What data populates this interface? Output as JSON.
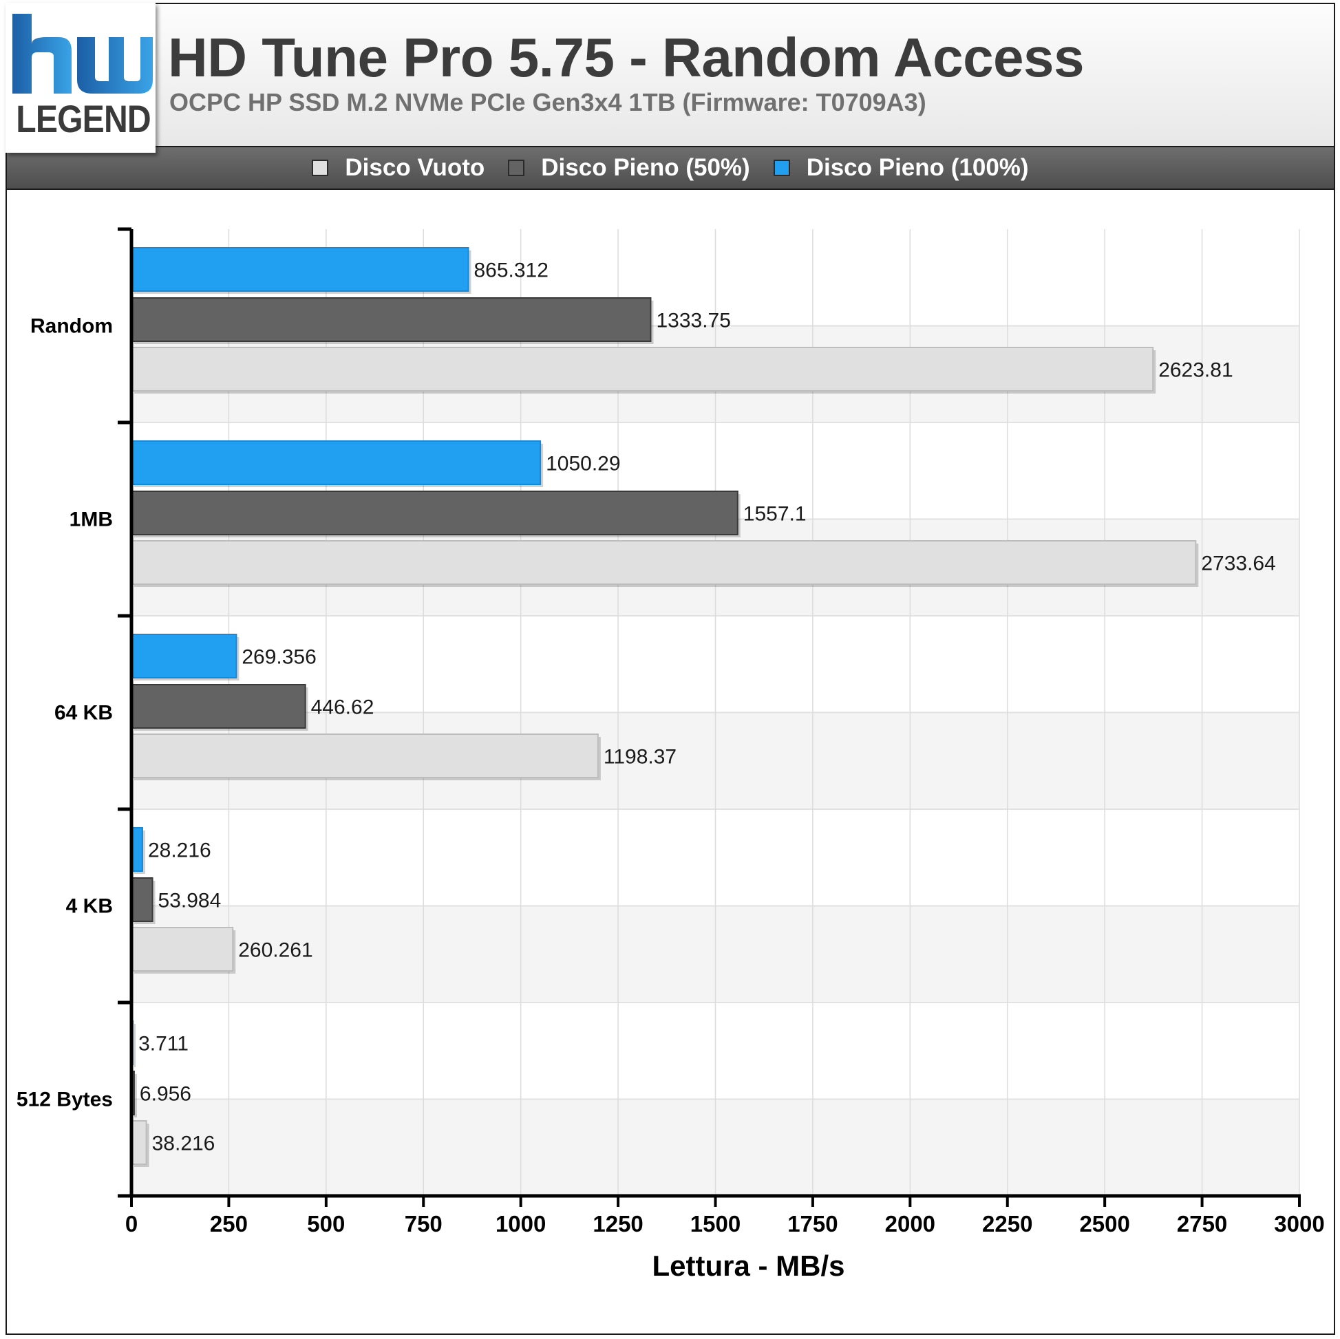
{
  "header": {
    "title": "HD Tune Pro 5.75 - Random Access",
    "subtitle": "OCPC HP SSD M.2 NVMe PCIe Gen3x4 1TB (Firmware: T0709A3)"
  },
  "logo": {
    "text": "LEGEND",
    "icon": "hwlegend-logo"
  },
  "chart_data": {
    "type": "bar",
    "orientation": "horizontal",
    "categories": [
      "Random",
      "1MB",
      "64 KB",
      "4 KB",
      "512 Bytes"
    ],
    "series": [
      {
        "name": "Disco Vuoto",
        "color": "#e0e0e0",
        "values": [
          2623.81,
          2733.64,
          1198.37,
          260.261,
          38.216
        ]
      },
      {
        "name": "Disco Pieno (50%)",
        "color": "#636363",
        "values": [
          1333.75,
          1557.1,
          446.62,
          53.984,
          6.956
        ]
      },
      {
        "name": "Disco Pieno (100%)",
        "color": "#219ff0",
        "values": [
          865.312,
          1050.29,
          269.356,
          28.216,
          3.711
        ]
      }
    ],
    "value_labels": [
      [
        "2623.81",
        "2733.64",
        "1198.37",
        "260.261",
        "38.216"
      ],
      [
        "1333.75",
        "1557.1",
        "446.62",
        "53.984",
        "6.956"
      ],
      [
        "865.312",
        "1050.29",
        "269.356",
        "28.216",
        "3.711"
      ]
    ],
    "xlabel": "Lettura - MB/s",
    "ylabel": "",
    "xlim": [
      0,
      3000
    ],
    "xticks": [
      0,
      250,
      500,
      750,
      1000,
      1250,
      1500,
      1750,
      2000,
      2250,
      2500,
      2750,
      3000
    ],
    "xtick_labels": [
      "0",
      "250",
      "500",
      "750",
      "1000",
      "1250",
      "1500",
      "1750",
      "2000",
      "2250",
      "2500",
      "2750",
      "3000"
    ],
    "grid": true,
    "legend_position": "top"
  }
}
